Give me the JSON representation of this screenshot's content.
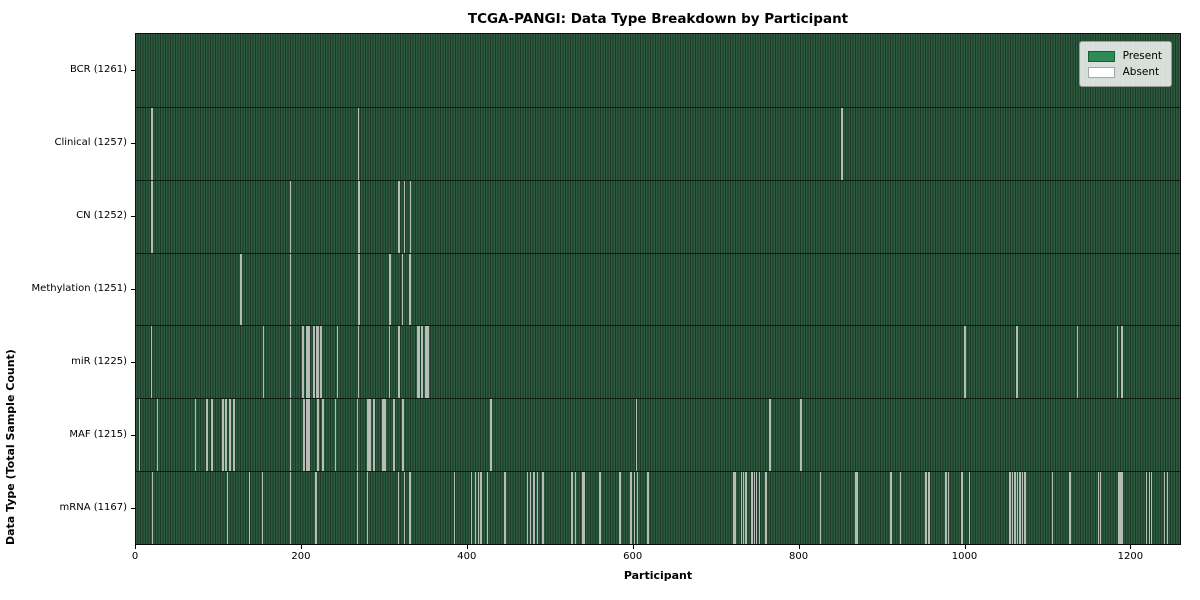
{
  "title": "TCGA-PANGI: Data Type Breakdown by Participant",
  "x_axis_label": "Participant",
  "y_axis_label": "Data Type (Total Sample Count)",
  "legend": {
    "present_label": "Present",
    "absent_label": "Absent",
    "position": "upper right"
  },
  "colors": {
    "present": "#2e8b57",
    "absent": "#ffffff",
    "plot_stripe_light": "#2c5a3e",
    "plot_stripe_dark": "#1d3a29",
    "absent_line": "#b6bdb6"
  },
  "chart_data": {
    "type": "heatmap",
    "title": "TCGA-PANGI: Data Type Breakdown by Participant",
    "xlabel": "Participant",
    "ylabel": "Data Type (Total Sample Count)",
    "legend_entries": [
      "Present",
      "Absent"
    ],
    "legend_position": "upper right",
    "grid": false,
    "x_range": [
      0,
      1261
    ],
    "x_ticks": [
      0,
      200,
      400,
      600,
      800,
      1000,
      1200
    ],
    "total_participants": 1261,
    "rows": [
      {
        "label": "BCR (1261)",
        "data_type": "BCR",
        "present_count": 1261,
        "absent_count": 0,
        "absent_participants": []
      },
      {
        "label": "Clinical (1257)",
        "data_type": "Clinical",
        "present_count": 1257,
        "absent_count": 4,
        "absent_participants": [
          18,
          19,
          268,
          852
        ]
      },
      {
        "label": "CN (1252)",
        "data_type": "CN",
        "present_count": 1252,
        "absent_count": 9,
        "absent_participants": [
          18,
          19,
          186,
          268,
          269,
          317,
          318,
          324,
          331
        ]
      },
      {
        "label": "Methylation (1251)",
        "data_type": "Methylation",
        "present_count": 1251,
        "absent_count": 10,
        "absent_participants": [
          126,
          127,
          186,
          268,
          269,
          306,
          307,
          321,
          330,
          331
        ]
      },
      {
        "label": "miR (1225)",
        "data_type": "miR",
        "present_count": 1225,
        "absent_count": 36,
        "absent_participants": [
          18,
          153,
          186,
          201,
          202,
          205,
          206,
          208,
          209,
          214,
          215,
          218,
          219,
          222,
          223,
          243,
          268,
          305,
          317,
          318,
          339,
          340,
          341,
          344,
          345,
          349,
          350,
          352,
          1000,
          1001,
          1063,
          1064,
          1136,
          1185,
          1190,
          1191
        ]
      },
      {
        "label": "MAF (1215)",
        "data_type": "MAF",
        "present_count": 1215,
        "absent_count": 46,
        "absent_participants": [
          4,
          25,
          71,
          85,
          90,
          92,
          104,
          105,
          108,
          109,
          112,
          113,
          117,
          118,
          186,
          202,
          203,
          205,
          206,
          208,
          209,
          219,
          220,
          225,
          226,
          240,
          267,
          279,
          280,
          282,
          283,
          286,
          287,
          297,
          298,
          300,
          310,
          311,
          321,
          322,
          428,
          604,
          765,
          766,
          802,
          803
        ]
      },
      {
        "label": "mRNA (1167)",
        "data_type": "mRNA",
        "present_count": 1167,
        "absent_count": 94,
        "absent_participants": [
          19,
          110,
          136,
          152,
          186,
          216,
          217,
          267,
          279,
          316,
          324,
          330,
          331,
          384,
          405,
          409,
          413,
          416,
          424,
          445,
          472,
          476,
          480,
          484,
          490,
          491,
          525,
          527,
          530,
          539,
          540,
          541,
          559,
          560,
          583,
          584,
          597,
          598,
          601,
          605,
          617,
          618,
          721,
          722,
          723,
          731,
          733,
          735,
          736,
          743,
          744,
          746,
          749,
          752,
          760,
          761,
          826,
          869,
          870,
          871,
          911,
          912,
          923,
          953,
          954,
          957,
          977,
          978,
          981,
          996,
          997,
          1006,
          1055,
          1056,
          1058,
          1061,
          1064,
          1067,
          1070,
          1073,
          1106,
          1127,
          1128,
          1162,
          1164,
          1186,
          1187,
          1189,
          1191,
          1220,
          1223,
          1226,
          1242,
          1245
        ]
      }
    ]
  }
}
